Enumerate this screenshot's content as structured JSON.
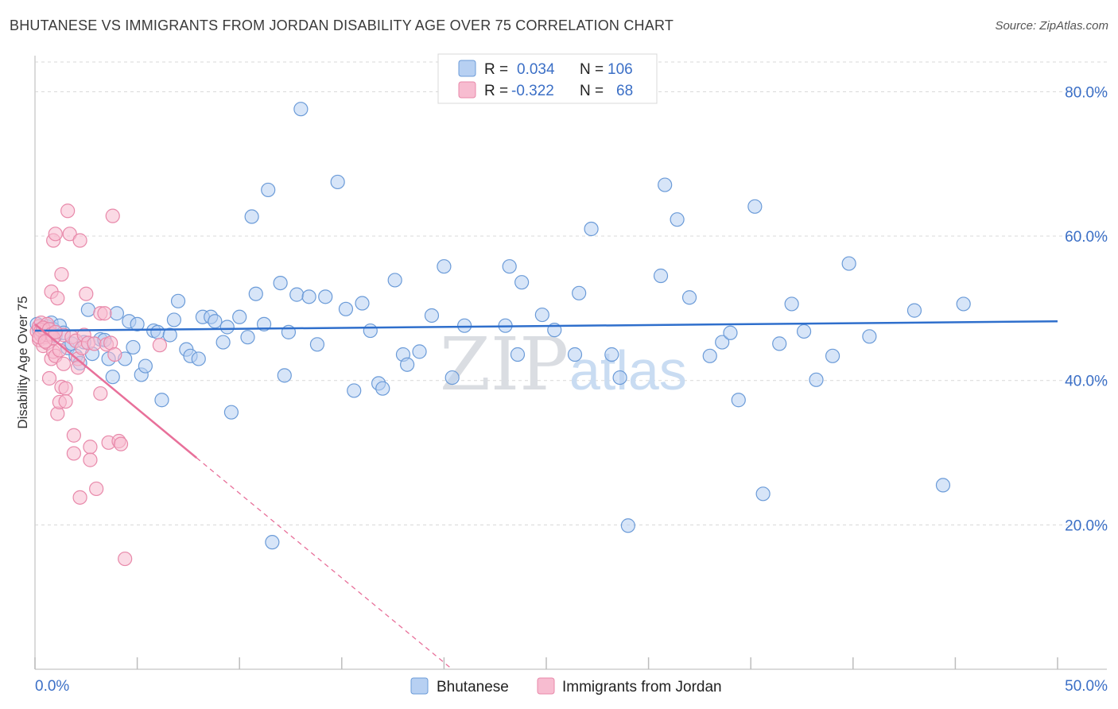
{
  "header": {
    "title": "BHUTANESE VS IMMIGRANTS FROM JORDAN DISABILITY AGE OVER 75 CORRELATION CHART",
    "source": "Source: ZipAtlas.com"
  },
  "colors": {
    "blue_fill": "#b7d0f2",
    "blue_stroke": "#6b9bd8",
    "blue_line": "#2f6fcc",
    "pink_fill": "#f7bcd0",
    "pink_stroke": "#e889aa",
    "pink_line": "#e8709a",
    "grid": "#d8d8d8",
    "axis_text": "#3b6fc6"
  },
  "chart_data": {
    "type": "scatter",
    "title": "BHUTANESE VS IMMIGRANTS FROM JORDAN DISABILITY AGE OVER 75 CORRELATION CHART",
    "xlabel": "",
    "ylabel": "Disability Age Over 75",
    "xlim": [
      0,
      50
    ],
    "ylim": [
      0,
      85
    ],
    "x_tick_labels": [
      "0.0%",
      "50.0%"
    ],
    "y_ticks": [
      20,
      40,
      60,
      80
    ],
    "y_tick_labels": [
      "20.0%",
      "40.0%",
      "60.0%",
      "80.0%"
    ],
    "grid": true,
    "watermark": {
      "zip": "ZIP",
      "atlas": "atlas"
    },
    "legend_top": {
      "entries": [
        {
          "r_label": "R =",
          "r_value": "0.034",
          "n_label": "N =",
          "n_value": "106"
        },
        {
          "r_label": "R =",
          "r_value": "-0.322",
          "n_label": "N =",
          "n_value": "68"
        }
      ]
    },
    "legend_bottom": [
      "Bhutanese",
      "Immigrants from Jordan"
    ],
    "series": [
      {
        "name": "Bhutanese",
        "trend": {
          "x": [
            0,
            50
          ],
          "y": [
            46.9,
            48.2
          ],
          "dashed_from_x": null
        },
        "points": [
          [
            0.1,
            47.8
          ],
          [
            0.2,
            47.0
          ],
          [
            0.3,
            46.5
          ],
          [
            0.4,
            47.2
          ],
          [
            0.5,
            46.8
          ],
          [
            0.6,
            47.5
          ],
          [
            0.7,
            46.3
          ],
          [
            0.8,
            48.0
          ],
          [
            0.9,
            47.1
          ],
          [
            1.0,
            46.2
          ],
          [
            1.2,
            47.6
          ],
          [
            1.4,
            46.6
          ],
          [
            1.6,
            44.5
          ],
          [
            1.8,
            45.1
          ],
          [
            2.0,
            43.4
          ],
          [
            2.2,
            42.4
          ],
          [
            2.4,
            45.3
          ],
          [
            2.6,
            49.8
          ],
          [
            2.8,
            43.7
          ],
          [
            3.2,
            45.7
          ],
          [
            3.4,
            45.6
          ],
          [
            3.6,
            43.0
          ],
          [
            3.8,
            40.5
          ],
          [
            4.0,
            49.3
          ],
          [
            4.4,
            43.0
          ],
          [
            4.6,
            48.2
          ],
          [
            4.8,
            44.6
          ],
          [
            5.0,
            47.8
          ],
          [
            5.2,
            40.8
          ],
          [
            5.4,
            42.0
          ],
          [
            5.8,
            46.9
          ],
          [
            6.0,
            46.7
          ],
          [
            6.2,
            37.3
          ],
          [
            6.6,
            46.3
          ],
          [
            6.8,
            48.4
          ],
          [
            7.0,
            51.0
          ],
          [
            7.4,
            44.3
          ],
          [
            7.6,
            43.4
          ],
          [
            8.0,
            43.0
          ],
          [
            8.2,
            48.8
          ],
          [
            8.6,
            48.8
          ],
          [
            8.8,
            48.2
          ],
          [
            9.2,
            45.3
          ],
          [
            9.4,
            47.4
          ],
          [
            9.6,
            35.6
          ],
          [
            10.0,
            48.8
          ],
          [
            10.4,
            46.0
          ],
          [
            10.6,
            62.7
          ],
          [
            10.8,
            52.0
          ],
          [
            11.2,
            47.8
          ],
          [
            11.4,
            66.4
          ],
          [
            11.6,
            17.6
          ],
          [
            12.0,
            53.5
          ],
          [
            12.2,
            40.7
          ],
          [
            12.4,
            46.7
          ],
          [
            12.8,
            51.9
          ],
          [
            13.0,
            77.6
          ],
          [
            13.4,
            51.6
          ],
          [
            13.8,
            45.0
          ],
          [
            14.2,
            51.6
          ],
          [
            14.8,
            67.5
          ],
          [
            15.2,
            49.9
          ],
          [
            15.6,
            38.6
          ],
          [
            16.0,
            50.7
          ],
          [
            16.4,
            46.9
          ],
          [
            16.8,
            39.6
          ],
          [
            17.0,
            38.9
          ],
          [
            17.6,
            53.9
          ],
          [
            18.0,
            43.6
          ],
          [
            18.2,
            42.2
          ],
          [
            18.8,
            44.0
          ],
          [
            19.4,
            49.0
          ],
          [
            20.0,
            55.8
          ],
          [
            20.4,
            40.4
          ],
          [
            21.0,
            47.6
          ],
          [
            23.0,
            47.6
          ],
          [
            23.2,
            55.8
          ],
          [
            23.6,
            43.6
          ],
          [
            23.8,
            53.6
          ],
          [
            24.8,
            49.1
          ],
          [
            25.4,
            47.0
          ],
          [
            26.4,
            43.6
          ],
          [
            26.6,
            52.1
          ],
          [
            27.2,
            61.0
          ],
          [
            28.2,
            43.6
          ],
          [
            28.6,
            40.4
          ],
          [
            29.0,
            19.9
          ],
          [
            30.6,
            54.5
          ],
          [
            30.8,
            67.1
          ],
          [
            31.4,
            62.3
          ],
          [
            32.0,
            51.5
          ],
          [
            33.0,
            43.4
          ],
          [
            33.6,
            45.3
          ],
          [
            34.0,
            46.6
          ],
          [
            34.4,
            37.3
          ],
          [
            35.6,
            24.3
          ],
          [
            35.2,
            64.1
          ],
          [
            36.4,
            45.1
          ],
          [
            37.0,
            50.6
          ],
          [
            37.6,
            46.8
          ],
          [
            38.2,
            40.1
          ],
          [
            39.0,
            43.4
          ],
          [
            39.8,
            56.2
          ],
          [
            40.8,
            46.1
          ],
          [
            43.0,
            49.7
          ],
          [
            44.4,
            25.5
          ],
          [
            45.4,
            50.6
          ]
        ]
      },
      {
        "name": "Immigrants from Jordan",
        "trend": {
          "x": [
            0,
            20.4
          ],
          "y": [
            47.8,
            0.0
          ],
          "dashed_from_x": 7.9
        },
        "points": [
          [
            0.1,
            46.8
          ],
          [
            0.2,
            47.5
          ],
          [
            0.2,
            45.6
          ],
          [
            0.3,
            46.3
          ],
          [
            0.3,
            48.0
          ],
          [
            0.4,
            47.2
          ],
          [
            0.4,
            44.8
          ],
          [
            0.5,
            46.0
          ],
          [
            0.6,
            47.8
          ],
          [
            0.6,
            45.2
          ],
          [
            0.7,
            46.5
          ],
          [
            0.7,
            40.3
          ],
          [
            0.8,
            43.0
          ],
          [
            0.8,
            52.3
          ],
          [
            0.9,
            44.0
          ],
          [
            0.9,
            59.4
          ],
          [
            1.0,
            43.4
          ],
          [
            1.0,
            60.3
          ],
          [
            1.1,
            35.4
          ],
          [
            1.1,
            51.4
          ],
          [
            1.2,
            44.2
          ],
          [
            1.2,
            37.0
          ],
          [
            1.3,
            39.1
          ],
          [
            1.3,
            54.7
          ],
          [
            1.4,
            42.3
          ],
          [
            1.4,
            46.3
          ],
          [
            1.5,
            38.9
          ],
          [
            1.5,
            37.1
          ],
          [
            1.6,
            63.5
          ],
          [
            1.7,
            60.3
          ],
          [
            1.8,
            46.0
          ],
          [
            1.9,
            32.4
          ],
          [
            1.9,
            29.9
          ],
          [
            2.0,
            45.5
          ],
          [
            2.1,
            43.0
          ],
          [
            2.1,
            41.8
          ],
          [
            2.2,
            59.4
          ],
          [
            2.2,
            23.8
          ],
          [
            2.3,
            44.5
          ],
          [
            2.4,
            46.3
          ],
          [
            2.5,
            52.0
          ],
          [
            2.6,
            45.2
          ],
          [
            2.7,
            30.8
          ],
          [
            2.7,
            29.0
          ],
          [
            2.9,
            45.1
          ],
          [
            3.0,
            25.0
          ],
          [
            3.2,
            38.2
          ],
          [
            3.2,
            49.3
          ],
          [
            3.4,
            49.3
          ],
          [
            3.5,
            45.0
          ],
          [
            3.6,
            31.4
          ],
          [
            3.7,
            45.2
          ],
          [
            3.8,
            62.8
          ],
          [
            3.9,
            43.6
          ],
          [
            4.1,
            31.6
          ],
          [
            4.2,
            31.2
          ],
          [
            4.4,
            15.3
          ],
          [
            6.1,
            44.9
          ],
          [
            0.5,
            46.8
          ],
          [
            0.6,
            46.3
          ],
          [
            0.3,
            47.0
          ],
          [
            0.4,
            47.3
          ],
          [
            0.7,
            47.1
          ],
          [
            0.8,
            46.4
          ],
          [
            0.9,
            45.9
          ],
          [
            1.0,
            46.7
          ],
          [
            0.2,
            46.0
          ],
          [
            0.5,
            45.4
          ]
        ]
      }
    ]
  }
}
